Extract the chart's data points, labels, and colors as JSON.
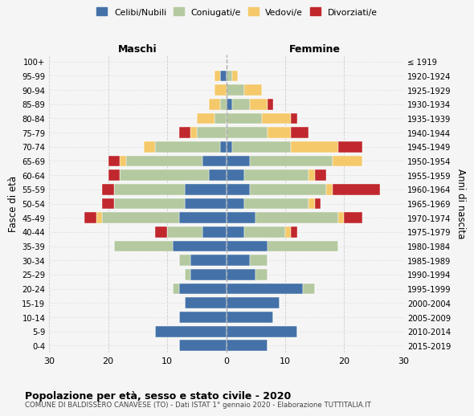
{
  "age_groups": [
    "0-4",
    "5-9",
    "10-14",
    "15-19",
    "20-24",
    "25-29",
    "30-34",
    "35-39",
    "40-44",
    "45-49",
    "50-54",
    "55-59",
    "60-64",
    "65-69",
    "70-74",
    "75-79",
    "80-84",
    "85-89",
    "90-94",
    "95-99",
    "100+"
  ],
  "birth_years": [
    "2015-2019",
    "2010-2014",
    "2005-2009",
    "2000-2004",
    "1995-1999",
    "1990-1994",
    "1985-1989",
    "1980-1984",
    "1975-1979",
    "1970-1974",
    "1965-1969",
    "1960-1964",
    "1955-1959",
    "1950-1954",
    "1945-1949",
    "1940-1944",
    "1935-1939",
    "1930-1934",
    "1925-1929",
    "1920-1924",
    "≤ 1919"
  ],
  "colors": {
    "celibi": "#4472a8",
    "coniugati": "#b5c9a0",
    "vedovi": "#f5c96a",
    "divorziati": "#c0282d"
  },
  "maschi": {
    "celibi": [
      8,
      12,
      8,
      7,
      8,
      6,
      6,
      9,
      4,
      8,
      7,
      7,
      3,
      4,
      1,
      0,
      0,
      0,
      0,
      1,
      0
    ],
    "coniugati": [
      0,
      0,
      0,
      0,
      1,
      1,
      2,
      10,
      6,
      13,
      12,
      12,
      15,
      13,
      11,
      5,
      2,
      1,
      0,
      0,
      0
    ],
    "vedovi": [
      0,
      0,
      0,
      0,
      0,
      0,
      0,
      0,
      0,
      1,
      0,
      0,
      0,
      1,
      2,
      1,
      3,
      2,
      2,
      1,
      0
    ],
    "divorziati": [
      0,
      0,
      0,
      0,
      0,
      0,
      0,
      0,
      2,
      2,
      2,
      2,
      2,
      2,
      0,
      2,
      0,
      0,
      0,
      0,
      0
    ]
  },
  "femmine": {
    "celibi": [
      7,
      12,
      8,
      9,
      13,
      5,
      4,
      7,
      3,
      5,
      3,
      4,
      3,
      4,
      1,
      0,
      0,
      1,
      0,
      0,
      0
    ],
    "coniugati": [
      0,
      0,
      0,
      0,
      2,
      2,
      3,
      12,
      7,
      14,
      11,
      13,
      11,
      14,
      10,
      7,
      6,
      3,
      3,
      1,
      0
    ],
    "vedovi": [
      0,
      0,
      0,
      0,
      0,
      0,
      0,
      0,
      1,
      1,
      1,
      1,
      1,
      5,
      8,
      4,
      5,
      3,
      3,
      1,
      0
    ],
    "divorziati": [
      0,
      0,
      0,
      0,
      0,
      0,
      0,
      0,
      1,
      3,
      1,
      8,
      2,
      0,
      4,
      3,
      1,
      1,
      0,
      0,
      0
    ]
  },
  "xlim": 30,
  "title": "Popolazione per età, sesso e stato civile - 2020",
  "subtitle": "COMUNE DI BALDISSERO CANAVESE (TO) - Dati ISTAT 1° gennaio 2020 - Elaborazione TUTTITALIA.IT",
  "ylabel_left": "Fasce di età",
  "ylabel_right": "Anni di nascita",
  "xlabel_maschi": "Maschi",
  "xlabel_femmine": "Femmine",
  "bg_color": "#f5f5f5",
  "grid_color": "#c8c8c8"
}
